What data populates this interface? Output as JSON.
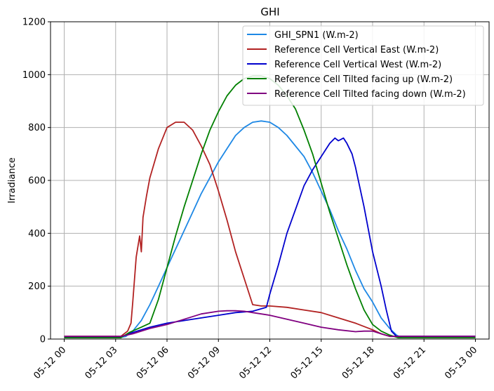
{
  "chart_data": {
    "type": "line",
    "title": "GHI",
    "xlabel": "",
    "ylabel": "Irradiance",
    "x_unit": "hours since 05-12 00:00",
    "xlim": [
      0,
      24
    ],
    "ylim": [
      0,
      1200
    ],
    "grid": true,
    "legend_position": "top-right",
    "x_ticks": [
      {
        "value": 0,
        "label": "05-12 00"
      },
      {
        "value": 3,
        "label": "05-12 03"
      },
      {
        "value": 6,
        "label": "05-12 06"
      },
      {
        "value": 9,
        "label": "05-12 09"
      },
      {
        "value": 12,
        "label": "05-12 12"
      },
      {
        "value": 15,
        "label": "05-12 15"
      },
      {
        "value": 18,
        "label": "05-12 18"
      },
      {
        "value": 21,
        "label": "05-12 21"
      },
      {
        "value": 24,
        "label": "05-13 00"
      }
    ],
    "y_ticks": [
      0,
      200,
      400,
      600,
      800,
      1000,
      1200
    ],
    "series": [
      {
        "name": "GHI_SPN1 (W.m-2)",
        "color": "#1e88e5",
        "x": [
          0,
          3.2,
          3.6,
          4.0,
          4.5,
          5.0,
          5.5,
          6.0,
          6.5,
          7.0,
          7.5,
          8.0,
          8.5,
          9.0,
          9.5,
          10.0,
          10.5,
          11.0,
          11.5,
          12.0,
          12.5,
          13.0,
          13.5,
          14.0,
          14.5,
          15.0,
          15.5,
          16.0,
          16.5,
          17.0,
          17.5,
          18.0,
          18.5,
          19.0,
          19.4,
          19.7,
          24
        ],
        "y": [
          5,
          5,
          10,
          30,
          70,
          130,
          200,
          270,
          340,
          410,
          480,
          550,
          610,
          670,
          720,
          770,
          800,
          820,
          825,
          820,
          800,
          770,
          730,
          690,
          630,
          560,
          490,
          410,
          340,
          260,
          190,
          140,
          80,
          40,
          15,
          5,
          5
        ]
      },
      {
        "name": "Reference Cell Vertical East (W.m-2)",
        "color": "#b22222",
        "x": [
          0,
          3.3,
          3.7,
          3.9,
          4.0,
          4.2,
          4.4,
          4.5,
          4.6,
          4.8,
          5.0,
          5.5,
          6.0,
          6.5,
          7.0,
          7.5,
          8.0,
          8.5,
          9.0,
          9.5,
          10.0,
          10.5,
          11.0,
          11.5,
          12.0,
          13.0,
          14.0,
          15.0,
          16.0,
          17.0,
          18.0,
          18.5,
          19.0,
          19.5,
          24
        ],
        "y": [
          10,
          10,
          30,
          60,
          140,
          310,
          390,
          330,
          460,
          540,
          610,
          720,
          800,
          820,
          820,
          790,
          730,
          660,
          560,
          450,
          330,
          230,
          130,
          125,
          125,
          120,
          110,
          100,
          80,
          60,
          35,
          20,
          10,
          10,
          10
        ]
      },
      {
        "name": "Reference Cell Vertical West (W.m-2)",
        "color": "#0000cd",
        "x": [
          0,
          3.3,
          4.0,
          5.0,
          6.0,
          7.0,
          8.0,
          9.0,
          10.0,
          11.0,
          11.8,
          12.0,
          12.5,
          13.0,
          13.5,
          14.0,
          14.5,
          15.0,
          15.5,
          15.8,
          16.0,
          16.3,
          16.5,
          16.8,
          17.0,
          17.5,
          18.0,
          18.5,
          18.8,
          19.1,
          19.4,
          24
        ],
        "y": [
          8,
          8,
          25,
          45,
          60,
          70,
          80,
          90,
          100,
          105,
          120,
          170,
          280,
          400,
          490,
          580,
          640,
          690,
          740,
          760,
          750,
          760,
          740,
          700,
          650,
          500,
          330,
          200,
          110,
          30,
          10,
          10
        ]
      },
      {
        "name": "Reference Cell Tilted facing up (W.m-2)",
        "color": "#008000",
        "x": [
          0,
          3.3,
          3.8,
          4.5,
          5.0,
          5.5,
          6.0,
          6.5,
          7.0,
          7.5,
          8.0,
          8.5,
          9.0,
          9.5,
          10.0,
          10.5,
          11.0,
          11.5,
          12.0,
          12.5,
          13.0,
          13.5,
          14.0,
          14.5,
          15.0,
          15.5,
          16.0,
          16.5,
          17.0,
          17.5,
          18.0,
          18.5,
          19.0,
          19.5,
          24
        ],
        "y": [
          5,
          5,
          25,
          45,
          60,
          150,
          270,
          390,
          500,
          600,
          700,
          790,
          860,
          920,
          960,
          985,
          995,
          995,
          985,
          960,
          920,
          870,
          790,
          700,
          590,
          480,
          380,
          280,
          190,
          110,
          55,
          30,
          15,
          5,
          5
        ]
      },
      {
        "name": "Reference Cell Tilted facing down (W.m-2)",
        "color": "#800080",
        "x": [
          0,
          3.3,
          4.0,
          5.0,
          6.0,
          7.0,
          8.0,
          9.0,
          9.5,
          10.0,
          10.5,
          11.0,
          12.0,
          13.0,
          14.0,
          15.0,
          16.0,
          17.0,
          17.5,
          18.0,
          18.5,
          19.0,
          19.5,
          24
        ],
        "y": [
          10,
          10,
          20,
          40,
          55,
          75,
          95,
          105,
          107,
          107,
          105,
          100,
          90,
          75,
          60,
          45,
          35,
          28,
          30,
          30,
          20,
          10,
          10,
          10
        ]
      }
    ]
  }
}
